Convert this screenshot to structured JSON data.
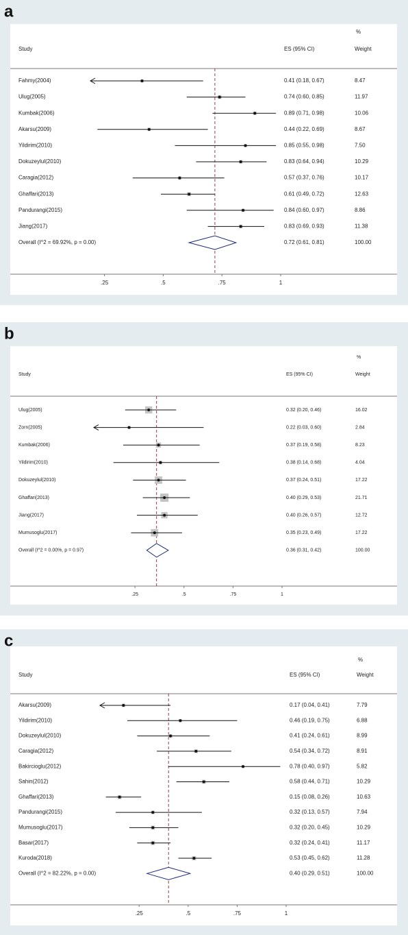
{
  "chart_data": [
    {
      "type": "forest",
      "panel_label": "a",
      "header": {
        "weight_pct": "%",
        "study": "Study",
        "es": "ES (95% CI)",
        "weight": "Weight"
      },
      "studies": [
        {
          "name": "Fahmy(2004)",
          "es": 0.41,
          "lo": 0.18,
          "hi": 0.67,
          "label": "0.41 (0.18, 0.67)",
          "weight": 8.47
        },
        {
          "name": "Ulug(2005)",
          "es": 0.74,
          "lo": 0.6,
          "hi": 0.85,
          "label": "0.74 (0.60, 0.85)",
          "weight": 11.97
        },
        {
          "name": "Kumbak(2006)",
          "es": 0.89,
          "lo": 0.71,
          "hi": 0.98,
          "label": "0.89 (0.71, 0.98)",
          "weight": 10.06
        },
        {
          "name": "Akarsu(2009)",
          "es": 0.44,
          "lo": 0.22,
          "hi": 0.69,
          "label": "0.44 (0.22, 0.69)",
          "weight": 8.67
        },
        {
          "name": "Yildirim(2010)",
          "es": 0.85,
          "lo": 0.55,
          "hi": 0.98,
          "label": "0.85 (0.55, 0.98)",
          "weight": {
            "value": 7.5,
            "label": "7.50"
          }
        },
        {
          "name": "Dokuzeylul(2010)",
          "es": 0.83,
          "lo": 0.64,
          "hi": 0.94,
          "label": "0.83 (0.64, 0.94)",
          "weight": 10.29
        },
        {
          "name": "Caragia(2012)",
          "es": 0.57,
          "lo": 0.37,
          "hi": 0.76,
          "label": "0.57 (0.37, 0.76)",
          "weight": 10.17
        },
        {
          "name": "Ghaffari(2013)",
          "es": 0.61,
          "lo": 0.49,
          "hi": 0.72,
          "label": "0.61 (0.49, 0.72)",
          "weight": 12.63
        },
        {
          "name": "Pandurangi(2015)",
          "es": 0.84,
          "lo": 0.6,
          "hi": 0.97,
          "label": "0.84 (0.60, 0.97)",
          "weight": 8.86
        },
        {
          "name": "Jiang(2017)",
          "es": 0.83,
          "lo": 0.69,
          "hi": 0.93,
          "label": "0.83 (0.69, 0.93)",
          "weight": 11.38
        }
      ],
      "overall": {
        "name": "Overall  (I^2 = 69.92%, p = 0.00)",
        "es": 0.72,
        "lo": 0.61,
        "hi": 0.81,
        "label": "0.72 (0.61, 0.81)",
        "weight": {
          "value": 100,
          "label": "100.00"
        }
      },
      "xlim": [
        0.19,
        1
      ],
      "xticks": [
        {
          "value": 0.25,
          "label": ".25"
        },
        {
          "value": 0.5,
          "label": ".5"
        },
        {
          "value": 0.75,
          "label": ".75"
        },
        1
      ],
      "ref_color": "#a33a3a",
      "diamond_color": "#1f2a7a",
      "box_color": "#c4c4c4"
    },
    {
      "type": "forest",
      "panel_label": "b",
      "header": {
        "weight_pct": "%",
        "study": "Study",
        "es": "ES (95% CI)",
        "weight": "Weight"
      },
      "studies": [
        {
          "name": "Ulug(2005)",
          "es": 0.32,
          "lo": 0.2,
          "hi": 0.46,
          "label": "0.32 (0.20, 0.46)",
          "weight": 16.02
        },
        {
          "name": "Zorn(2005)",
          "es": 0.22,
          "lo": 0.03,
          "hi": 0.6,
          "label": "0.22 (0.03, 0.60)",
          "weight": 2.84
        },
        {
          "name": "Kumbak(2006)",
          "es": 0.37,
          "lo": 0.19,
          "hi": 0.58,
          "label": "0.37 (0.19, 0.58)",
          "weight": 8.23
        },
        {
          "name": "Yildirim(2010)",
          "es": 0.38,
          "lo": 0.14,
          "hi": 0.68,
          "label": "0.38 (0.14, 0.68)",
          "weight": 4.04
        },
        {
          "name": "Dokuzeylul(2010)",
          "es": 0.37,
          "lo": 0.24,
          "hi": 0.51,
          "label": "0.37 (0.24, 0.51)",
          "weight": 17.22
        },
        {
          "name": "Ghaffari(2013)",
          "es": 0.4,
          "lo": 0.29,
          "hi": 0.53,
          "label": "0.40 (0.29, 0.53)",
          "weight": 21.71
        },
        {
          "name": "Jiang(2017)",
          "es": 0.4,
          "lo": 0.26,
          "hi": 0.57,
          "label": "0.40 (0.26, 0.57)",
          "weight": 12.72
        },
        {
          "name": "Mumusoglu(2017)",
          "es": 0.35,
          "lo": 0.23,
          "hi": 0.49,
          "label": "0.35 (0.23, 0.49)",
          "weight": 17.22
        }
      ],
      "overall": {
        "name": "Overall  (I^2 = 0.00%, p = 0.97)",
        "es": 0.36,
        "lo": 0.31,
        "hi": 0.42,
        "label": "0.36 (0.31, 0.42)",
        "weight": {
          "value": 100,
          "label": "100.00"
        }
      },
      "xlim": [
        0.04,
        1
      ],
      "xticks": [
        {
          "value": 0.25,
          "label": ".25"
        },
        {
          "value": 0.5,
          "label": ".5"
        },
        {
          "value": 0.75,
          "label": ".75"
        },
        1
      ],
      "ref_color": "#a33a3a",
      "diamond_color": "#1f2a7a",
      "box_color": "#c4c4c4"
    },
    {
      "type": "forest",
      "panel_label": "c",
      "header": {
        "weight_pct": "%",
        "study": "Study",
        "es": "ES (95% CI)",
        "weight": "Weight"
      },
      "studies": [
        {
          "name": "Akarsu(2009)",
          "es": 0.17,
          "lo": 0.04,
          "hi": 0.41,
          "label": "0.17 (0.04, 0.41)",
          "weight": 7.79
        },
        {
          "name": "Yildirim(2010)",
          "es": 0.46,
          "lo": 0.19,
          "hi": 0.75,
          "label": "0.46 (0.19, 0.75)",
          "weight": 6.88
        },
        {
          "name": "Dokuzeylul(2010)",
          "es": 0.41,
          "lo": 0.24,
          "hi": 0.61,
          "label": "0.41 (0.24, 0.61)",
          "weight": 8.99
        },
        {
          "name": "Caragia(2012)",
          "es": 0.54,
          "lo": 0.34,
          "hi": 0.72,
          "label": "0.54 (0.34, 0.72)",
          "weight": 8.91
        },
        {
          "name": "Bakircioglu(2012)",
          "es": 0.78,
          "lo": 0.4,
          "hi": 0.97,
          "label": "0.78 (0.40, 0.97)",
          "weight": 5.82
        },
        {
          "name": "Sahin(2012)",
          "es": 0.58,
          "lo": 0.44,
          "hi": 0.71,
          "label": "0.58 (0.44, 0.71)",
          "weight": 10.29
        },
        {
          "name": "Ghaffari(2013)",
          "es": 0.15,
          "lo": 0.08,
          "hi": 0.26,
          "label": "0.15 (0.08, 0.26)",
          "weight": 10.63
        },
        {
          "name": "Pandurangi(2015)",
          "es": 0.32,
          "lo": 0.13,
          "hi": 0.57,
          "label": "0.32 (0.13, 0.57)",
          "weight": 7.94
        },
        {
          "name": "Mumusoglu(2017)",
          "es": 0.32,
          "lo": 0.2,
          "hi": 0.45,
          "label": "0.32 (0.20, 0.45)",
          "weight": 10.29
        },
        {
          "name": "Basar(2017)",
          "es": 0.32,
          "lo": 0.24,
          "hi": 0.41,
          "label": "0.32 (0.24, 0.41)",
          "weight": 11.17
        },
        {
          "name": "Kuroda(2018)",
          "es": 0.53,
          "lo": 0.45,
          "hi": 0.62,
          "label": "0.53 (0.45, 0.62)",
          "weight": 11.28
        }
      ],
      "overall": {
        "name": "Overall  (I^2 = 82.22%, p = 0.00)",
        "es": 0.4,
        "lo": 0.29,
        "hi": 0.51,
        "label": "0.40 (0.29, 0.51)",
        "weight": {
          "value": 100,
          "label": "100.00"
        }
      },
      "xlim": [
        0.05,
        1
      ],
      "xticks": [
        {
          "value": 0.25,
          "label": ".25"
        },
        {
          "value": 0.5,
          "label": ".5"
        },
        {
          "value": 0.75,
          "label": ".75"
        },
        1
      ],
      "ref_color": "#a33a3a",
      "diamond_color": "#1f2a7a",
      "box_color": "#c4c4c4"
    }
  ]
}
